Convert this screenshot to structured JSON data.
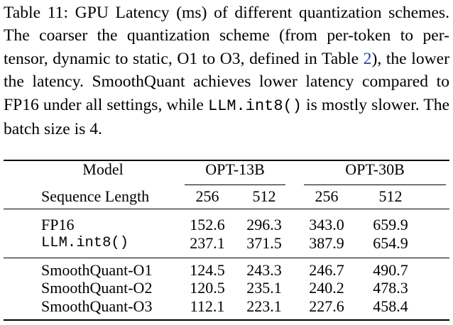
{
  "caption": {
    "label": "Table 11:",
    "p1": " GPU Latency (ms) of different quantization schemes. The coarser the quantization scheme (from per-token to per-tensor, dynamic to static, O1 to O3, defined in Table ",
    "ref": "2",
    "p2": "), the lower the latency. SmoothQuant achieves lower latency compared to FP16 under all settings, while ",
    "code": "LLM.int8()",
    "p3": " is mostly slower. The batch size is 4."
  },
  "table": {
    "header": {
      "model": "Model",
      "groups": [
        "OPT-13B",
        "OPT-30B"
      ],
      "seq_label": "Sequence Length",
      "seq_values": [
        "256",
        "512",
        "256",
        "512"
      ]
    },
    "rows": [
      {
        "name": "FP16",
        "values": [
          "152.6",
          "296.3",
          "343.0",
          "659.9"
        ]
      },
      {
        "name": "LLM.int8()",
        "values": [
          "237.1",
          "371.5",
          "387.9",
          "654.9"
        ]
      },
      {
        "name": "SmoothQuant-O1",
        "values": [
          "124.5",
          "243.3",
          "246.7",
          "490.7"
        ]
      },
      {
        "name": "SmoothQuant-O2",
        "values": [
          "120.5",
          "235.1",
          "240.2",
          "478.3"
        ]
      },
      {
        "name": "SmoothQuant-O3",
        "values": [
          "112.1",
          "223.1",
          "227.6",
          "458.4"
        ]
      }
    ]
  }
}
